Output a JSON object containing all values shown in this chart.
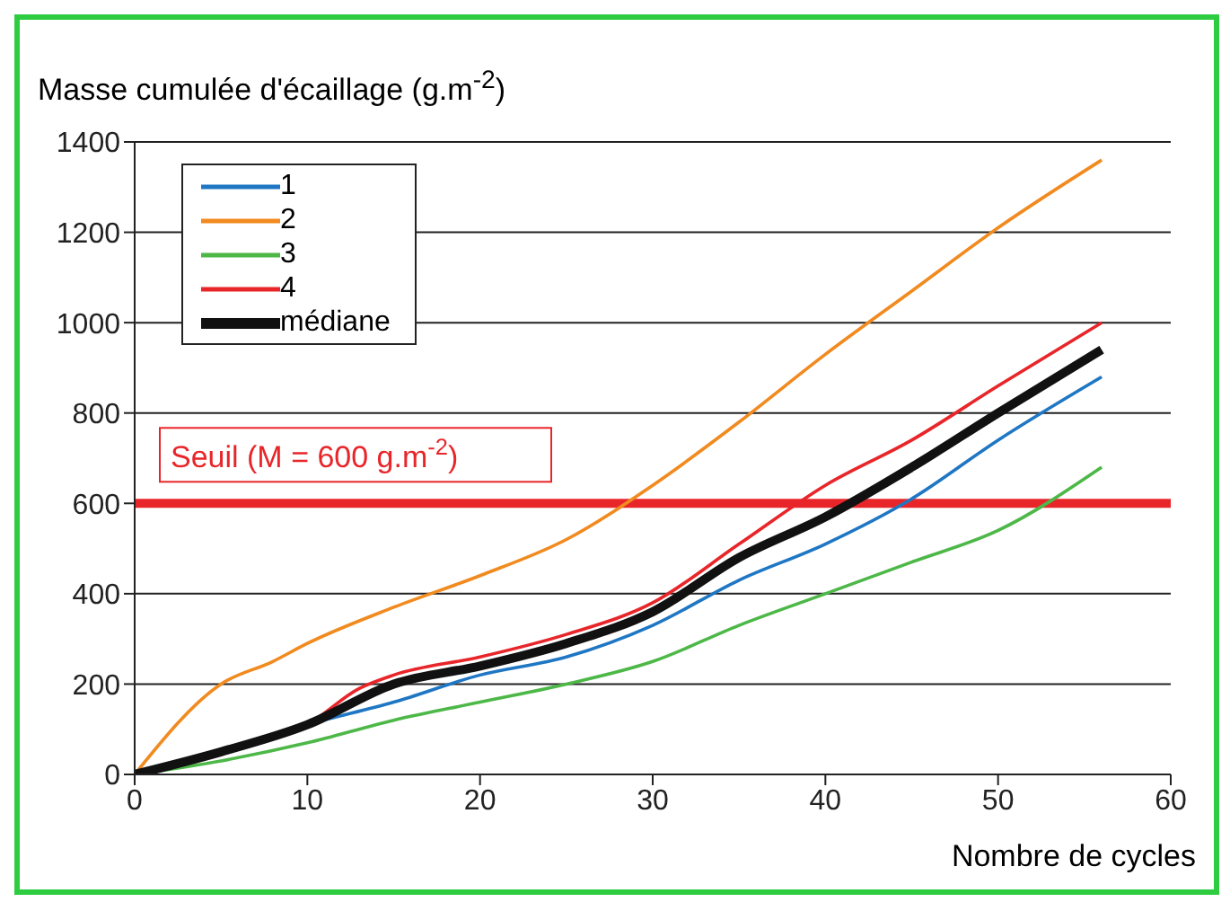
{
  "chart_data": {
    "type": "line",
    "ylabel": "Masse cumulée d'écaillage (g.m$^{-2}$)",
    "xlabel": "Nombre de cycles",
    "xlim": [
      0,
      60
    ],
    "xticks": [
      0,
      10,
      20,
      30,
      40,
      50,
      60
    ],
    "ylim": [
      0,
      1400
    ],
    "yticks": [
      0,
      200,
      400,
      600,
      800,
      1000,
      1200,
      1400
    ],
    "grid": "y",
    "legend": "top left",
    "marker": "none",
    "line_style": "solid",
    "ref_lines": [
      {
        "axis": "y",
        "value": 600,
        "label": "Seuil (M = 600 g.m$^{-2}$)",
        "color": "#e8262a"
      }
    ],
    "series": [
      {
        "name": "1",
        "color": "#1f77c4",
        "x": [
          0,
          5,
          10,
          15,
          20,
          25,
          30,
          35,
          40,
          45,
          50,
          56
        ],
        "values": [
          0,
          50,
          110,
          160,
          220,
          260,
          330,
          430,
          510,
          610,
          740,
          880
        ]
      },
      {
        "name": "2",
        "color": "#f18a1f",
        "x": [
          0,
          5,
          8,
          10,
          15,
          20,
          25,
          30,
          35,
          40,
          45,
          50,
          56
        ],
        "values": [
          0,
          200,
          250,
          290,
          370,
          440,
          520,
          640,
          780,
          930,
          1070,
          1210,
          1360
        ]
      },
      {
        "name": "3",
        "color": "#4db848",
        "x": [
          0,
          5,
          10,
          15,
          20,
          25,
          30,
          35,
          40,
          45,
          50,
          56
        ],
        "values": [
          0,
          30,
          70,
          120,
          160,
          200,
          250,
          330,
          400,
          470,
          540,
          680
        ]
      },
      {
        "name": "4",
        "color": "#e8262a",
        "x": [
          0,
          5,
          10,
          13,
          15,
          20,
          25,
          30,
          35,
          40,
          45,
          50,
          56
        ],
        "values": [
          0,
          50,
          110,
          190,
          220,
          260,
          310,
          380,
          510,
          640,
          740,
          860,
          1000
        ]
      },
      {
        "name": "médiane",
        "color": "#111111",
        "x": [
          0,
          5,
          10,
          15,
          20,
          25,
          30,
          35,
          40,
          45,
          50,
          56
        ],
        "values": [
          0,
          50,
          110,
          200,
          240,
          290,
          360,
          480,
          570,
          680,
          800,
          940
        ]
      }
    ]
  }
}
